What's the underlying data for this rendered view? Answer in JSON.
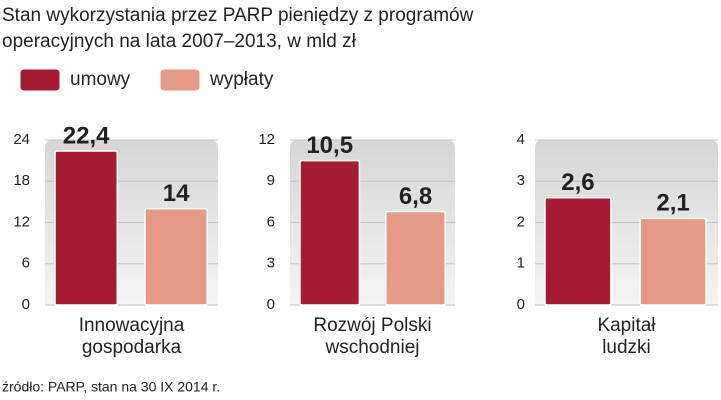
{
  "title": [
    "Stan wykorzystania przez PARP pieniędzy z programów",
    "operacyjnych na lata 2007–2013, w mld zł"
  ],
  "legend": [
    {
      "name": "umowy",
      "color": "#a51c30"
    },
    {
      "name": "wypłaty",
      "color": "#e59a85"
    }
  ],
  "chart_data": [
    {
      "type": "bar",
      "xlabel": [
        "Innowacyjna",
        "gospodarka"
      ],
      "values": [
        22.4,
        14
      ],
      "value_labels": [
        "22,4",
        "14"
      ],
      "ylim": [
        0,
        24
      ],
      "yticks": [
        0,
        6,
        12,
        18,
        24
      ]
    },
    {
      "type": "bar",
      "xlabel": [
        "Rozwój Polski",
        "wschodniej"
      ],
      "values": [
        10.5,
        6.8
      ],
      "value_labels": [
        "10,5",
        "6,8"
      ],
      "ylim": [
        0,
        12
      ],
      "yticks": [
        0,
        3,
        6,
        9,
        12
      ]
    },
    {
      "type": "bar",
      "xlabel": [
        "Kapitał",
        "ludzki"
      ],
      "values": [
        2.6,
        2.1
      ],
      "value_labels": [
        "2,6",
        "2,1"
      ],
      "ylim": [
        0,
        4
      ],
      "yticks": [
        0,
        1,
        2,
        3,
        4
      ]
    }
  ],
  "source": "źródło: PARP, stan na 30 IX 2014 r."
}
